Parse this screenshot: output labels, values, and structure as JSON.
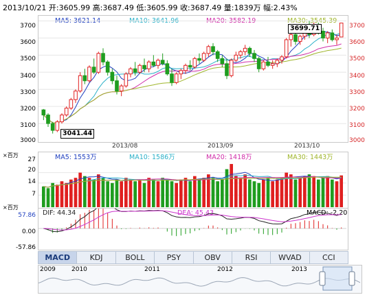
{
  "header": {
    "date": "2013/10/21",
    "open_label": "开:",
    "open": "3605.99",
    "high_label": "高:",
    "high": "3687.49",
    "low_label": "低:",
    "low": "3605.99",
    "close_label": "收:",
    "close": "3687.49",
    "volume_label": "量:",
    "volume": "1839万",
    "change_label": "幅:",
    "change": "2.43%"
  },
  "price_panel": {
    "legend": {
      "ma5": "MA5: 3621.14",
      "ma10": "MA10: 3641.96",
      "ma20": "MA20: 3582.19",
      "ma30": "MA30: 3545.39"
    },
    "y_ticks": [
      "3700",
      "3600",
      "3500",
      "3400",
      "3300",
      "3200",
      "3100",
      "3000"
    ],
    "x_ticks": [
      "2013/08",
      "2013/09",
      "2013/10"
    ],
    "high_marker": "3699.71",
    "low_marker": "3041.44"
  },
  "volume_panel": {
    "unit": "×百万",
    "legend": {
      "ma5": "MA5: 1553万",
      "ma10": "MA10: 1586万",
      "ma20": "MA20: 1418万",
      "ma30": "MA30: 1443万"
    },
    "y_ticks": [
      "27",
      "20",
      "14",
      "7"
    ]
  },
  "macd_panel": {
    "unit": "×百万",
    "legend": {
      "dif": "DIF: 44.34",
      "dea": "DEA: 45.43",
      "macd": "MACD: -2.20"
    },
    "y_ticks": [
      "57.86",
      "0.00",
      "-57.86"
    ]
  },
  "tabs": [
    "MACD",
    "KDJ",
    "BOLL",
    "PSY",
    "OBV",
    "RSI",
    "WVAD",
    "CCI"
  ],
  "active_tab": "MACD",
  "navigator": {
    "years": [
      "2009",
      "2010",
      "2011",
      "2012",
      "2013"
    ]
  },
  "colors": {
    "up": "#e02020",
    "down": "#1f9d1f",
    "ma5": "#1f3fbf",
    "ma10": "#2ab0c8",
    "ma20": "#d02ca8",
    "ma30": "#9fb52a",
    "dif": "#222222",
    "dea": "#cc33cc"
  },
  "chart_data": {
    "type": "candlestick",
    "x_range": [
      "2013-07",
      "2013-10-21"
    ],
    "price_ylim": [
      3000,
      3730
    ],
    "ohlc": [
      [
        3180,
        3185,
        3120,
        3150
      ],
      [
        3150,
        3160,
        3080,
        3100
      ],
      [
        3100,
        3110,
        3041.44,
        3060
      ],
      [
        3060,
        3120,
        3050,
        3110
      ],
      [
        3110,
        3160,
        3100,
        3150
      ],
      [
        3150,
        3200,
        3140,
        3190
      ],
      [
        3190,
        3250,
        3180,
        3240
      ],
      [
        3240,
        3300,
        3220,
        3290
      ],
      [
        3290,
        3400,
        3280,
        3380
      ],
      [
        3380,
        3420,
        3330,
        3350
      ],
      [
        3350,
        3440,
        3340,
        3430
      ],
      [
        3430,
        3480,
        3390,
        3400
      ],
      [
        3400,
        3520,
        3390,
        3510
      ],
      [
        3510,
        3540,
        3440,
        3460
      ],
      [
        3460,
        3470,
        3380,
        3400
      ],
      [
        3400,
        3420,
        3330,
        3350
      ],
      [
        3350,
        3380,
        3270,
        3290
      ],
      [
        3290,
        3330,
        3260,
        3320
      ],
      [
        3320,
        3400,
        3310,
        3390
      ],
      [
        3390,
        3430,
        3370,
        3420
      ],
      [
        3420,
        3460,
        3380,
        3400
      ],
      [
        3400,
        3450,
        3390,
        3440
      ],
      [
        3440,
        3480,
        3400,
        3420
      ],
      [
        3420,
        3470,
        3400,
        3460
      ],
      [
        3460,
        3500,
        3430,
        3440
      ],
      [
        3440,
        3480,
        3420,
        3470
      ],
      [
        3470,
        3510,
        3440,
        3450
      ],
      [
        3450,
        3470,
        3380,
        3390
      ],
      [
        3390,
        3420,
        3320,
        3340
      ],
      [
        3340,
        3400,
        3330,
        3390
      ],
      [
        3390,
        3420,
        3360,
        3410
      ],
      [
        3410,
        3450,
        3390,
        3440
      ],
      [
        3440,
        3470,
        3410,
        3430
      ],
      [
        3430,
        3490,
        3420,
        3480
      ],
      [
        3480,
        3510,
        3450,
        3470
      ],
      [
        3470,
        3520,
        3460,
        3510
      ],
      [
        3510,
        3560,
        3490,
        3550
      ],
      [
        3550,
        3570,
        3500,
        3520
      ],
      [
        3520,
        3530,
        3460,
        3480
      ],
      [
        3480,
        3500,
        3430,
        3450
      ],
      [
        3450,
        3480,
        3360,
        3380
      ],
      [
        3380,
        3480,
        3370,
        3470
      ],
      [
        3470,
        3520,
        3460,
        3500
      ],
      [
        3500,
        3530,
        3480,
        3520
      ],
      [
        3520,
        3560,
        3500,
        3540
      ],
      [
        3540,
        3550,
        3490,
        3510
      ],
      [
        3510,
        3530,
        3460,
        3480
      ],
      [
        3480,
        3490,
        3400,
        3420
      ],
      [
        3420,
        3470,
        3410,
        3460
      ],
      [
        3460,
        3490,
        3430,
        3440
      ],
      [
        3440,
        3470,
        3420,
        3450
      ],
      [
        3450,
        3480,
        3430,
        3470
      ],
      [
        3470,
        3500,
        3450,
        3490
      ],
      [
        3490,
        3600,
        3480,
        3590
      ],
      [
        3590,
        3640,
        3550,
        3620
      ],
      [
        3620,
        3630,
        3560,
        3580
      ],
      [
        3580,
        3620,
        3560,
        3610
      ],
      [
        3610,
        3660,
        3590,
        3650
      ],
      [
        3650,
        3699.71,
        3600,
        3620
      ],
      [
        3620,
        3690,
        3610,
        3680
      ],
      [
        3680,
        3690,
        3620,
        3640
      ],
      [
        3640,
        3660,
        3580,
        3600
      ],
      [
        3600,
        3640,
        3570,
        3630
      ],
      [
        3630,
        3650,
        3580,
        3590
      ],
      [
        3590,
        3620,
        3560,
        3600
      ],
      [
        3605.99,
        3687.49,
        3605.99,
        3687.49
      ]
    ],
    "volume": [
      12,
      11,
      14,
      13,
      15,
      14,
      16,
      17,
      20,
      18,
      17,
      16,
      19,
      17,
      15,
      14,
      16,
      15,
      17,
      16,
      15,
      16,
      14,
      17,
      16,
      15,
      17,
      16,
      15,
      14,
      16,
      17,
      15,
      18,
      16,
      17,
      19,
      17,
      15,
      16,
      22,
      25,
      18,
      17,
      19,
      16,
      15,
      14,
      16,
      17,
      15,
      16,
      17,
      20,
      19,
      16,
      17,
      18,
      19,
      18,
      16,
      17,
      18,
      16,
      15,
      18.39
    ],
    "macd_hist_note": "DIF/DEA oscillator with histogram",
    "macd_ylim": [
      -57.86,
      57.86
    ]
  }
}
